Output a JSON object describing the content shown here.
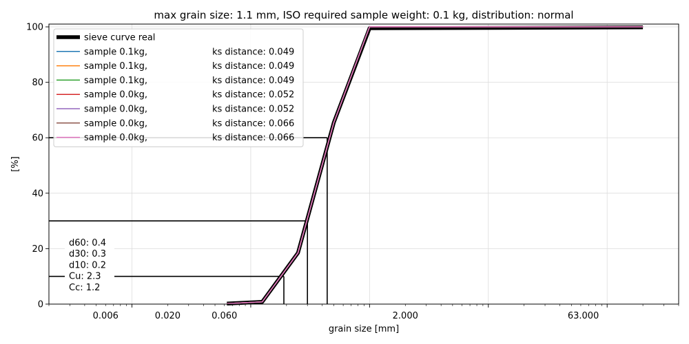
{
  "chart_data": {
    "type": "line",
    "title": "max grain size: 1.1 mm, ISO required sample weight: 0.1 kg, distribution: normal",
    "xlabel": "grain size [mm]",
    "ylabel": "[%]",
    "xscale": "log",
    "xlim": [
      0.002,
      400
    ],
    "ylim": [
      0,
      101
    ],
    "grid": true,
    "legend_location": "upper-left",
    "x_tick_labels": [
      "0.006",
      "0.020",
      "0.060",
      "2.000",
      "63.000"
    ],
    "x_tick_values": [
      0.006,
      0.02,
      0.06,
      2.0,
      63.0
    ],
    "y_ticks": [
      0,
      20,
      40,
      60,
      80,
      100
    ],
    "colors": {
      "real": "#000000",
      "samples": [
        "#1f77b4",
        "#ff7f0e",
        "#2ca02c",
        "#d62728",
        "#9467bd",
        "#8c564b",
        "#e377c2"
      ]
    },
    "real_curve": {
      "name": "sieve curve real",
      "x": [
        0.063,
        0.125,
        0.25,
        0.5,
        1.0,
        200.0
      ],
      "y": [
        0.2,
        0.8,
        18.5,
        65.5,
        99.5,
        99.8
      ]
    },
    "series": [
      {
        "name": "sample 0.1kg,",
        "ks": "ks distance: 0.049",
        "x": [
          0.063,
          0.125,
          0.25,
          0.5,
          1.0,
          200.0
        ],
        "y": [
          0.2,
          0.8,
          18.5,
          65.5,
          100.0,
          100.0
        ]
      },
      {
        "name": "sample 0.1kg,",
        "ks": "ks distance: 0.049",
        "x": [
          0.063,
          0.125,
          0.25,
          0.5,
          1.0,
          200.0
        ],
        "y": [
          0.2,
          0.8,
          18.5,
          65.5,
          100.0,
          100.0
        ]
      },
      {
        "name": "sample 0.1kg,",
        "ks": "ks distance: 0.049",
        "x": [
          0.063,
          0.125,
          0.25,
          0.5,
          1.0,
          200.0
        ],
        "y": [
          0.2,
          0.8,
          18.5,
          65.5,
          100.0,
          100.0
        ]
      },
      {
        "name": "sample 0.0kg,",
        "ks": "ks distance: 0.052",
        "x": [
          0.063,
          0.125,
          0.25,
          0.5,
          1.0,
          200.0
        ],
        "y": [
          0.2,
          0.8,
          18.5,
          65.5,
          100.0,
          100.0
        ]
      },
      {
        "name": "sample 0.0kg,",
        "ks": "ks distance: 0.052",
        "x": [
          0.063,
          0.125,
          0.25,
          0.5,
          1.0,
          200.0
        ],
        "y": [
          0.2,
          0.8,
          18.5,
          65.5,
          100.0,
          100.0
        ]
      },
      {
        "name": "sample 0.0kg,",
        "ks": "ks distance: 0.066",
        "x": [
          0.063,
          0.125,
          0.25,
          0.5,
          1.0,
          200.0
        ],
        "y": [
          0.2,
          0.8,
          18.5,
          65.5,
          100.0,
          100.0
        ]
      },
      {
        "name": "sample 0.0kg,",
        "ks": "ks distance: 0.066",
        "x": [
          0.063,
          0.125,
          0.25,
          0.5,
          1.0,
          200.0
        ],
        "y": [
          0.2,
          0.8,
          18.5,
          65.5,
          100.0,
          100.0
        ]
      }
    ],
    "percentile_lines": [
      {
        "label": "d60",
        "x": 0.44,
        "y": 60
      },
      {
        "label": "d30",
        "x": 0.3,
        "y": 30
      },
      {
        "label": "d10",
        "x": 0.19,
        "y": 10
      }
    ],
    "stats": [
      {
        "label": "d60: 0.4"
      },
      {
        "label": "d30: 0.3"
      },
      {
        "label": "d10: 0.2"
      },
      {
        "label": "Cu: 2.3"
      },
      {
        "label": "Cc: 1.2"
      }
    ]
  }
}
